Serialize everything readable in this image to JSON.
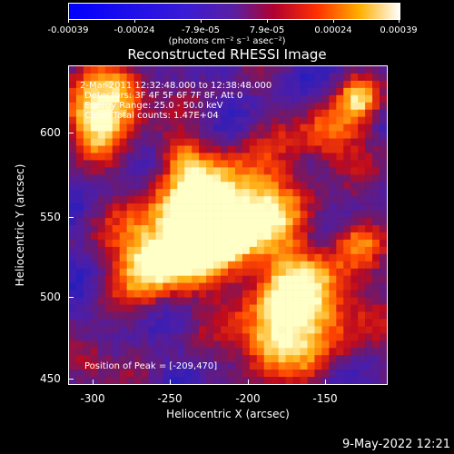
{
  "colorbar": {
    "ticks": [
      "-0.00039",
      "-0.00024",
      "-7.9e-05",
      "7.9e-05",
      "0.00024",
      "0.00039"
    ],
    "units": "(photons cm⁻² s⁻¹ asec⁻²)"
  },
  "title": "Reconstructed RHESSI Image",
  "annotations": {
    "time_range": "2-Mar-2011 12:32:48.000 to 12:38:48.000",
    "detectors": "Detectors: 3F 4F 5F 6F 7F 8F, Att 0",
    "energy_range": "Energy Range: 25.0 - 50.0 keV",
    "clean_counts": "Clean     Total counts: 1.47E+04",
    "peak_position": "Position of Peak = [-209,470]"
  },
  "axes": {
    "xlabel": "Heliocentric X (arcsec)",
    "ylabel": "Heliocentric Y (arcsec)",
    "xticks": [
      "-300",
      "-250",
      "-200",
      "-150"
    ],
    "yticks": [
      "600",
      "550",
      "500",
      "450"
    ]
  },
  "timestamp": "9-May-2022 12:21",
  "colors": {
    "background": "#000000",
    "colormap": [
      "#0000ff",
      "#5a1fa0",
      "#b00030",
      "#ff3000",
      "#ffb000",
      "#ffffff"
    ]
  }
}
